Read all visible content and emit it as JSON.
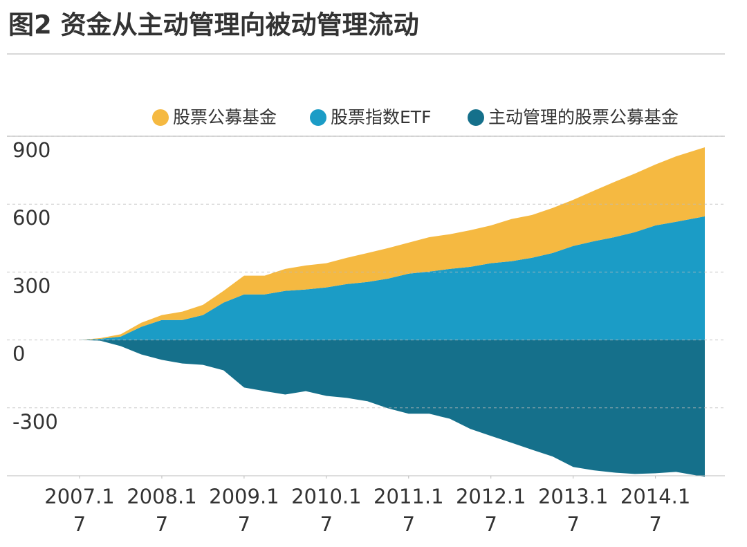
{
  "chart_data": {
    "type": "stacked-area",
    "title": "图2 资金从主动管理向被动管理流动",
    "x": [
      2007,
      2007.25,
      2007.5,
      2007.75,
      2008,
      2008.25,
      2008.5,
      2008.75,
      2009,
      2009.25,
      2009.5,
      2009.75,
      2010,
      2010.25,
      2010.5,
      2010.75,
      2011,
      2011.25,
      2011.5,
      2011.75,
      2012,
      2012.25,
      2012.5,
      2012.75,
      2013,
      2013.25,
      2013.5,
      2013.75,
      2014,
      2014.25,
      2014.6
    ],
    "series": [
      {
        "name": "股票公募基金",
        "color": "#f5b941",
        "stack": "positive",
        "values": [
          0,
          3,
          10,
          18,
          22,
          37,
          45,
          52,
          83,
          83,
          97,
          106,
          107,
          116,
          128,
          135,
          137,
          152,
          153,
          162,
          167,
          186,
          189,
          199,
          204,
          223,
          244,
          259,
          269,
          289,
          305
        ]
      },
      {
        "name": "股票指数ETF",
        "color": "#1b9cc6",
        "stack": "base",
        "values": [
          0,
          5,
          15,
          58,
          88,
          88,
          110,
          165,
          201,
          201,
          217,
          223,
          232,
          247,
          256,
          271,
          293,
          302,
          314,
          323,
          339,
          348,
          363,
          384,
          415,
          436,
          454,
          476,
          506,
          522,
          546
        ]
      },
      {
        "name": "主动管理的股票公募基金",
        "color": "#15708b",
        "stack": "negative",
        "values": [
          0,
          -3,
          -27,
          -64,
          -88,
          -104,
          -110,
          -134,
          -210,
          -226,
          -241,
          -226,
          -247,
          -256,
          -271,
          -302,
          -326,
          -326,
          -348,
          -393,
          -424,
          -454,
          -485,
          -515,
          -561,
          -576,
          -586,
          -592,
          -589,
          -583,
          -605
        ]
      }
    ],
    "xlim": [
      2007,
      2014.6
    ],
    "xticks": [
      {
        "value": 2007,
        "label": [
          "2007.1",
          "7"
        ]
      },
      {
        "value": 2008,
        "label": [
          "2008.1",
          "7"
        ]
      },
      {
        "value": 2009,
        "label": [
          "2009.1",
          "7"
        ]
      },
      {
        "value": 2010,
        "label": [
          "2010.1",
          "7"
        ]
      },
      {
        "value": 2011,
        "label": [
          "2011.1",
          "7"
        ]
      },
      {
        "value": 2012,
        "label": [
          "2012.1",
          "7"
        ]
      },
      {
        "value": 2013,
        "label": [
          "2013.1",
          "7"
        ]
      },
      {
        "value": 2014,
        "label": [
          "2014.1",
          "7"
        ]
      }
    ],
    "ylim": [
      -600,
      900
    ],
    "yticks": [
      -300,
      0,
      300,
      600,
      900
    ],
    "grid": true,
    "legend": "top-right"
  }
}
